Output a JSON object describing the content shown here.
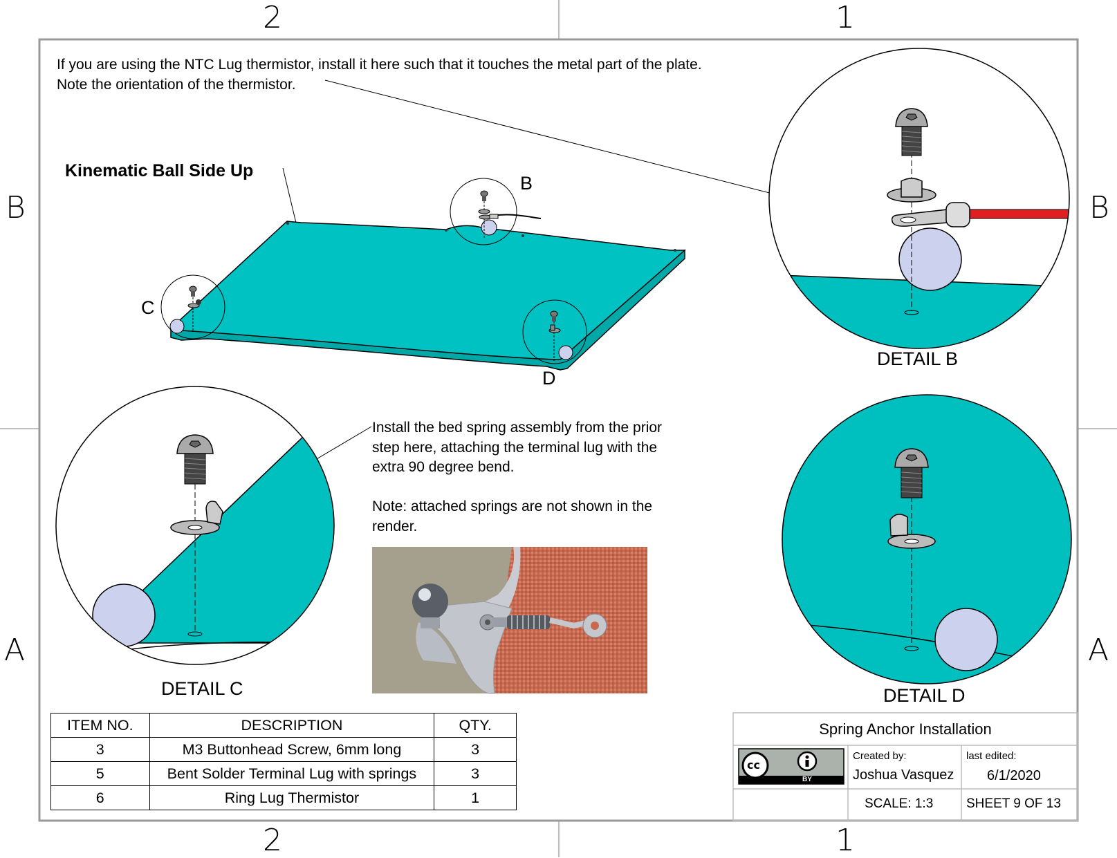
{
  "zones": {
    "top": [
      "2",
      "1"
    ],
    "bottom": [
      "2",
      "1"
    ],
    "left": [
      "B",
      "A"
    ],
    "right": [
      "B",
      "A"
    ]
  },
  "notes": {
    "thermistor": "If you are using the NTC Lug thermistor, install it here such that it touches the metal part of the plate.\nNote  the orientation of the thermistor.",
    "kinematic": "Kinematic Ball Side Up",
    "spring": "Install the bed spring assembly from the prior\nstep here, attaching the terminal lug with the\nextra 90 degree bend.\n\nNote: attached springs are not shown in the\nrender."
  },
  "callouts": {
    "b": "B",
    "c": "C",
    "d": "D"
  },
  "details": {
    "b": "DETAIL B",
    "c": "DETAIL C",
    "d": "DETAIL D"
  },
  "bom": {
    "headers": [
      "ITEM NO.",
      "DESCRIPTION",
      "QTY."
    ],
    "rows": [
      [
        "3",
        "M3 Buttonhead Screw, 6mm long",
        "3"
      ],
      [
        "5",
        "Bent Solder Terminal Lug with springs",
        "3"
      ],
      [
        "6",
        "Ring Lug Thermistor",
        "1"
      ]
    ]
  },
  "title_block": {
    "title": "Spring Anchor Installation",
    "created_by_label": "Created by:",
    "author": "Joshua Vasquez",
    "last_edited_label": "last edited:",
    "date": "6/1/2020",
    "scale": "SCALE: 1:3",
    "sheet": "SHEET 9 OF 13",
    "license_text": "BY"
  },
  "colors": {
    "plate": "#00bfbf",
    "ball": "#ccd2ee",
    "wire": "#e02020",
    "border": "#888888"
  }
}
